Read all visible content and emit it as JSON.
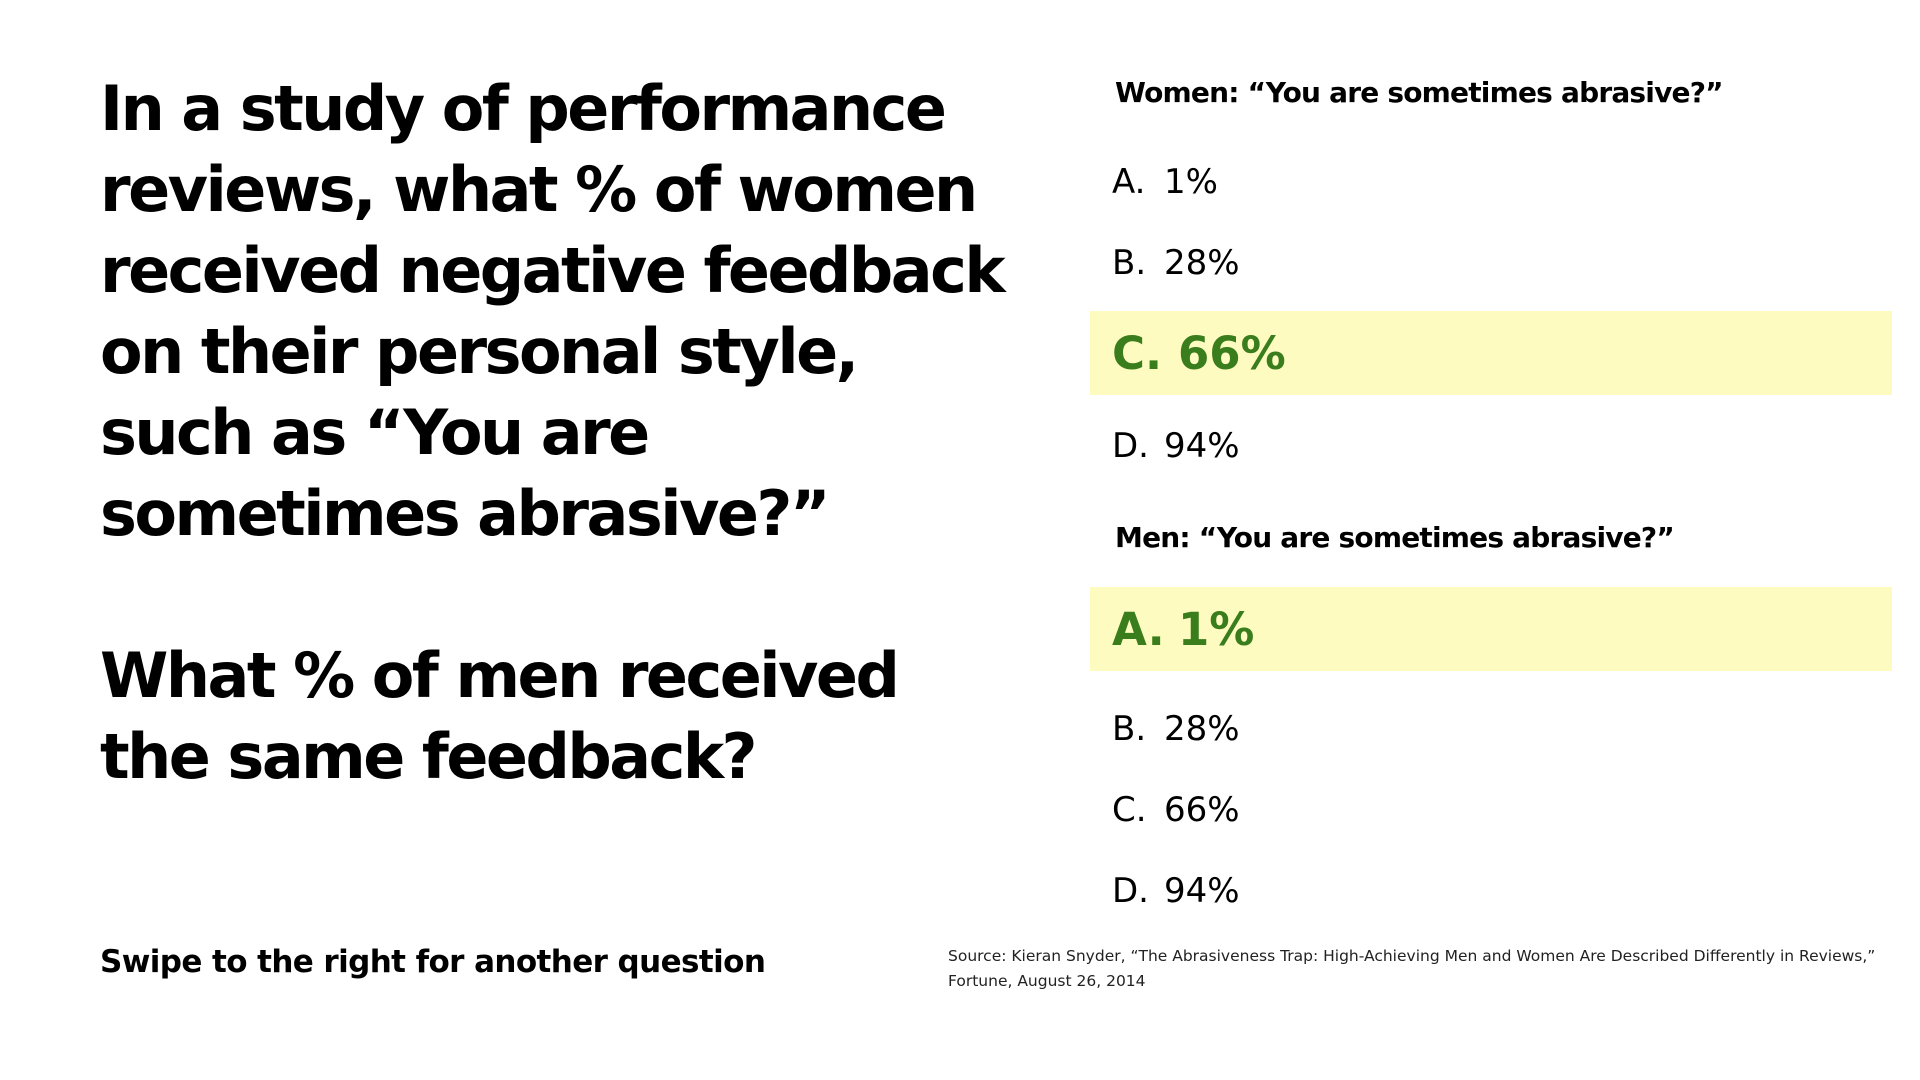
{
  "question": {
    "line_1": "In a study of performance reviews, what % of women received negative feedback on their personal style, such as “You are sometimes abrasive?”",
    "line_2": "What % of men received the same feedback?"
  },
  "swipe_hint": "Swipe to the right for another question",
  "women": {
    "title": "Women: “You are sometimes abrasive?”",
    "options": [
      {
        "letter": "A.",
        "value": "1%"
      },
      {
        "letter": "B.",
        "value": "28%"
      },
      {
        "letter": "C.",
        "value": "66%"
      },
      {
        "letter": "D.",
        "value": "94%"
      }
    ],
    "correct": "C"
  },
  "men": {
    "title": "Men: “You are sometimes abrasive?”",
    "options": [
      {
        "letter": "A.",
        "value": "1%"
      },
      {
        "letter": "B.",
        "value": "28%"
      },
      {
        "letter": "C.",
        "value": "66%"
      },
      {
        "letter": "D.",
        "value": "94%"
      }
    ],
    "correct": "A"
  },
  "colors": {
    "highlight_background": "#fefbc0",
    "correct_text": "#3a7d1c",
    "text": "#000000"
  },
  "source": {
    "line_1": "Source: Kieran Snyder, “The Abrasiveness Trap: High-Achieving Men and Women Are Described Differently in Reviews,”",
    "line_2": "Fortune, August 26, 2014"
  }
}
